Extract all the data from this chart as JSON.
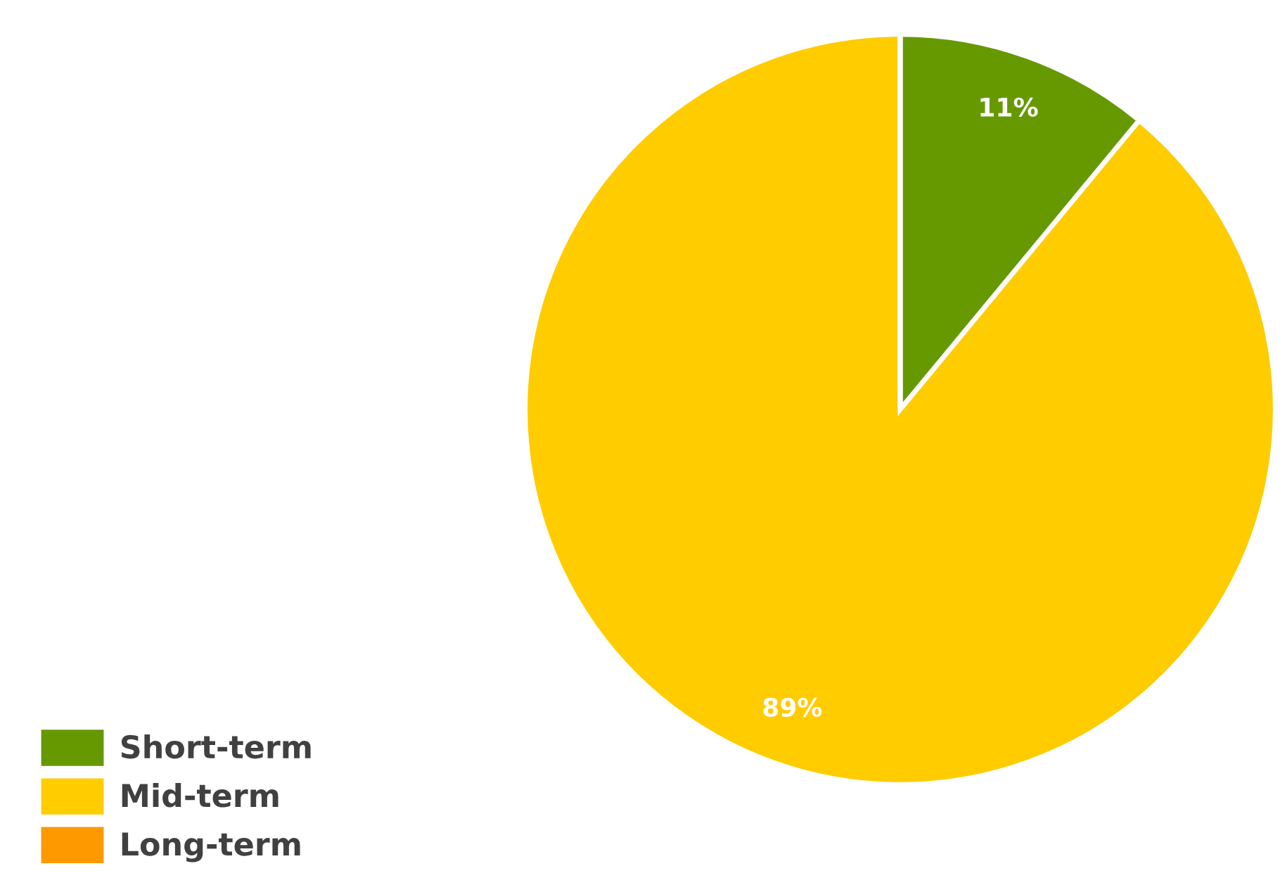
{
  "chart_data": {
    "type": "pie",
    "categories": [
      "Short-term",
      "Mid-term",
      "Long-term"
    ],
    "values": [
      11,
      89,
      0
    ],
    "colors": [
      "#669900",
      "#ffcc00",
      "#ff9900"
    ],
    "value_labels": [
      "11%",
      "89%",
      null
    ],
    "legend": "bottom left"
  }
}
